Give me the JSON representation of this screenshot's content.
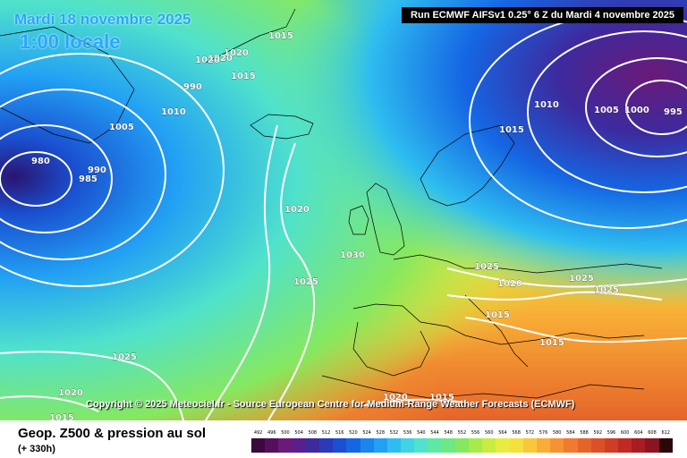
{
  "header": {
    "date": "Mardi 18 novembre 2025",
    "hour": "1:00 locale",
    "run": "Run ECMWF AIFSv1 0.25° 6 Z du Mardi 4 novembre 2025"
  },
  "copyright": "Copyright © 2025 Meteociel.fr - Source European Centre for Medium-Range Weather Forecasts (ECMWF)",
  "footer": {
    "title": "Geop. Z500 & pression au sol",
    "subtitle": "(+ 330h)"
  },
  "colorbar": {
    "ticks": [
      "492",
      "496",
      "500",
      "504",
      "508",
      "512",
      "516",
      "520",
      "524",
      "528",
      "532",
      "536",
      "540",
      "544",
      "548",
      "552",
      "556",
      "560",
      "564",
      "568",
      "572",
      "576",
      "580",
      "584",
      "588",
      "592",
      "596",
      "600",
      "604",
      "608",
      "612"
    ],
    "colors": [
      "#3b0a3b",
      "#55105a",
      "#6a1a78",
      "#5a1f8e",
      "#3d2a9e",
      "#2a3ab8",
      "#1a4fd0",
      "#1566e3",
      "#1b85ee",
      "#22a1f4",
      "#2ebdf0",
      "#3fd3e4",
      "#50e2cc",
      "#5ee8a6",
      "#6ee882",
      "#86e860",
      "#a6ea4c",
      "#c8ec42",
      "#e6ec40",
      "#f5e03c",
      "#f8c83a",
      "#f8ae36",
      "#f69232",
      "#f07a2e",
      "#e6642a",
      "#dc5028",
      "#d03c26",
      "#c02a24",
      "#a81c22",
      "#8a1420",
      "#2a0808"
    ]
  },
  "isobar_labels": [
    "1020",
    "1015",
    "1010",
    "1005",
    "1000",
    "995",
    "990",
    "985",
    "980",
    "1025",
    "1030",
    "1020",
    "1025",
    "1015",
    "1020",
    "1025",
    "1015",
    "1025",
    "1010",
    "1005",
    "1000",
    "995",
    "990",
    "1015",
    "1020",
    "1020",
    "1015",
    "1020",
    "1025",
    "1015",
    "1020"
  ]
}
